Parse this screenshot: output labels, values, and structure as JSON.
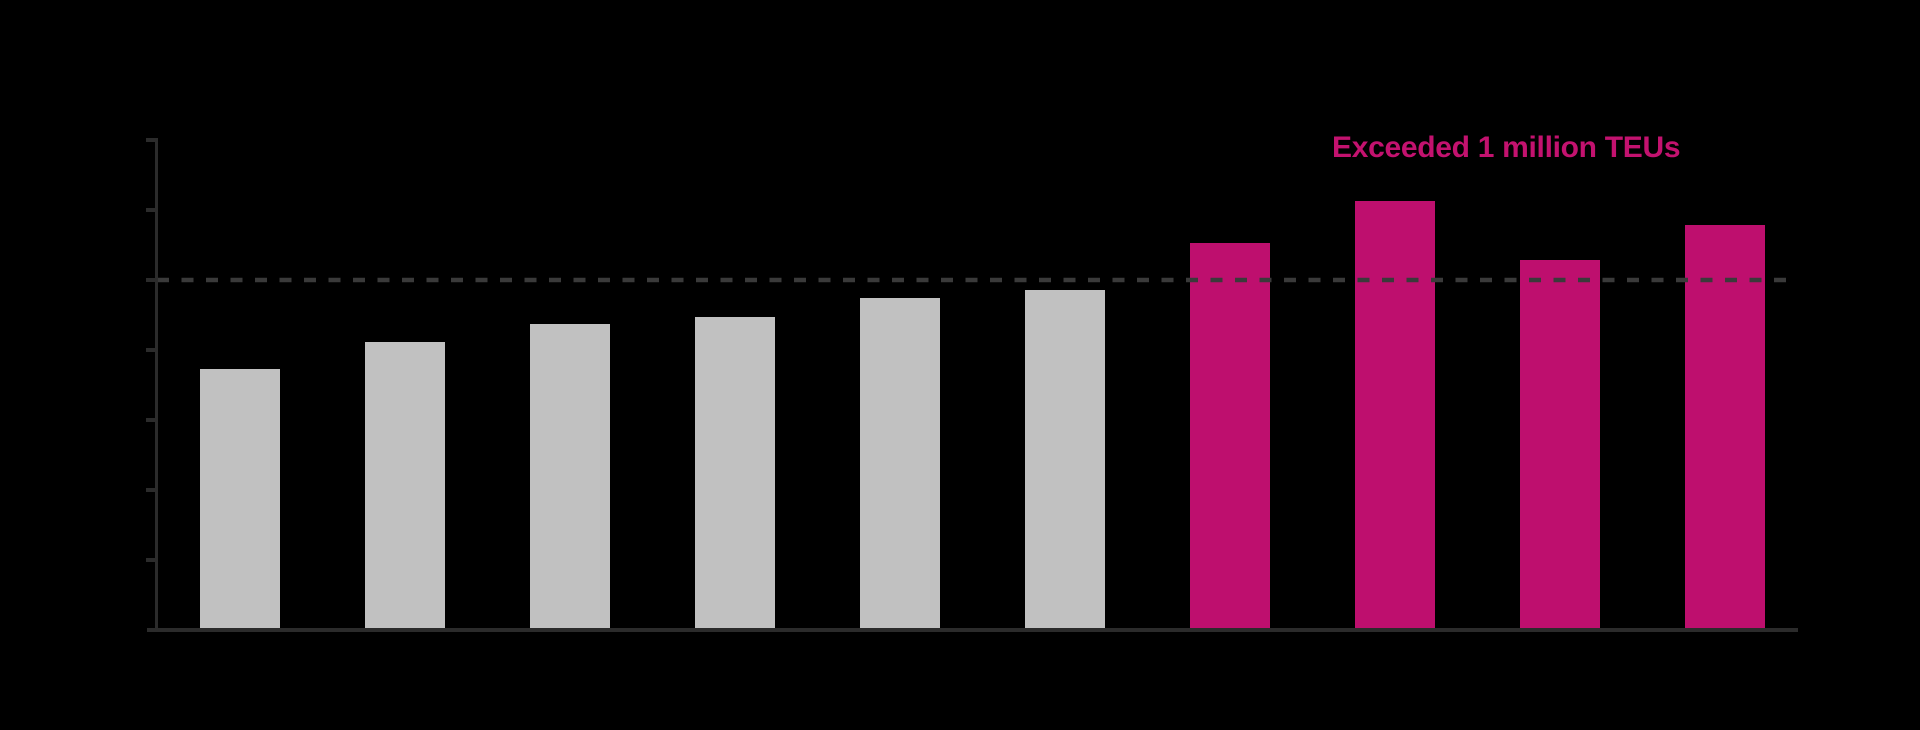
{
  "chart_data": {
    "type": "bar",
    "title": "",
    "annotation": "Exceeded 1 million TEUs",
    "unit": "TEUs",
    "bars": [
      {
        "value_teu": 745000,
        "color": "gray"
      },
      {
        "value_teu": 823000,
        "color": "gray"
      },
      {
        "value_teu": 874000,
        "color": "gray"
      },
      {
        "value_teu": 895000,
        "color": "gray"
      },
      {
        "value_teu": 949000,
        "color": "gray"
      },
      {
        "value_teu": 971000,
        "color": "gray"
      },
      {
        "value_teu": 1106000,
        "color": "magenta"
      },
      {
        "value_teu": 1226000,
        "color": "magenta"
      },
      {
        "value_teu": 1057000,
        "color": "magenta"
      },
      {
        "value_teu": 1157000,
        "color": "magenta"
      }
    ],
    "reference_line": {
      "value_teu": 1000000,
      "style": "dashed"
    },
    "y_axis": {
      "min_teu": 0,
      "max_teu": 1400000,
      "tick_step_teu": 200000,
      "tick_labels_visible": false
    },
    "x_axis": {
      "tick_labels_visible": false
    },
    "legend": "none",
    "grid": "off"
  },
  "colors": {
    "background": "#000000",
    "bar_gray": "#C1C1C1",
    "bar_magenta": "#BE0F6E",
    "annotation_text": "#C3126F",
    "axis_line": "#2B2B2B",
    "reference_line": "#3A3A3A"
  }
}
